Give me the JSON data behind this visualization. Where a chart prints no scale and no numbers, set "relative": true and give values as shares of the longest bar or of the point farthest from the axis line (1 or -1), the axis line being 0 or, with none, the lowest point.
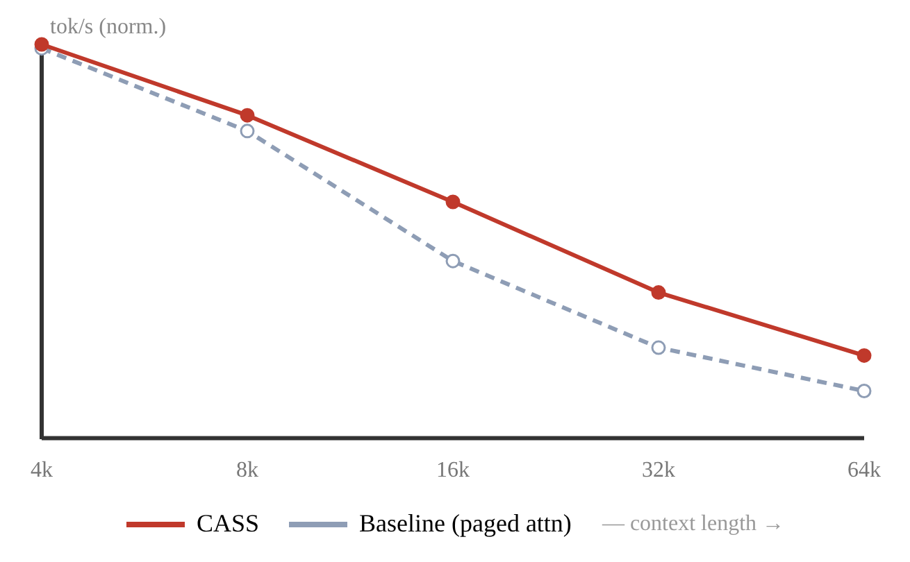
{
  "chart_data": {
    "type": "line",
    "relative": true,
    "ylabel": "tok/s (norm.)",
    "xlabel": "— context length →",
    "categories": [
      "4k",
      "8k",
      "16k",
      "32k",
      "64k"
    ],
    "series": [
      {
        "name": "CASS",
        "color": "#c0392b",
        "values": [
          1,
          0.82,
          0.6,
          0.37,
          0.21
        ],
        "line_style": "solid",
        "marker": "circle"
      },
      {
        "name": "Baseline (paged attn)",
        "color": "#8e9db5",
        "values": [
          0.99,
          0.78,
          0.45,
          0.23,
          0.12
        ],
        "line_style": "dashed",
        "marker": "circle"
      }
    ],
    "legend": "bottom"
  }
}
